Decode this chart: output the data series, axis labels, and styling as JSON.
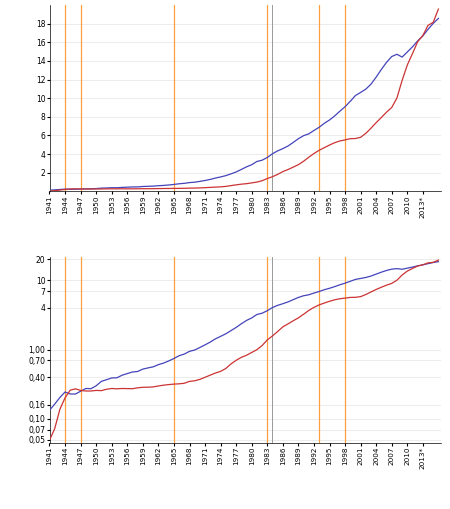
{
  "years": [
    1941,
    1942,
    1943,
    1944,
    1945,
    1946,
    1947,
    1948,
    1949,
    1950,
    1951,
    1952,
    1953,
    1954,
    1955,
    1956,
    1957,
    1958,
    1959,
    1960,
    1961,
    1962,
    1963,
    1964,
    1965,
    1966,
    1967,
    1968,
    1969,
    1970,
    1971,
    1972,
    1973,
    1974,
    1975,
    1976,
    1977,
    1978,
    1979,
    1980,
    1981,
    1982,
    1983,
    1984,
    1985,
    1986,
    1987,
    1988,
    1989,
    1990,
    1991,
    1992,
    1993,
    1994,
    1995,
    1996,
    1997,
    1998,
    1999,
    2000,
    2001,
    2002,
    2003,
    2004,
    2005,
    2006,
    2007,
    2008,
    2009,
    2010,
    2011,
    2012,
    2013,
    2014,
    2015,
    2016
  ],
  "gdp": [
    0.133,
    0.163,
    0.203,
    0.244,
    0.228,
    0.228,
    0.25,
    0.274,
    0.272,
    0.3,
    0.347,
    0.367,
    0.389,
    0.391,
    0.426,
    0.45,
    0.474,
    0.482,
    0.522,
    0.543,
    0.563,
    0.605,
    0.638,
    0.685,
    0.743,
    0.815,
    0.861,
    0.942,
    0.984,
    1.071,
    1.168,
    1.282,
    1.428,
    1.549,
    1.688,
    1.877,
    2.086,
    2.356,
    2.632,
    2.862,
    3.211,
    3.345,
    3.638,
    4.04,
    4.347,
    4.59,
    4.87,
    5.252,
    5.657,
    5.979,
    6.174,
    6.539,
    6.879,
    7.309,
    7.664,
    8.1,
    8.609,
    9.089,
    9.665,
    10.29,
    10.622,
    10.977,
    11.511,
    12.275,
    13.094,
    13.856,
    14.478,
    14.719,
    14.419,
    14.964,
    15.518,
    16.155,
    16.692,
    17.393,
    18.037,
    18.569
  ],
  "debt": [
    0.049,
    0.072,
    0.137,
    0.201,
    0.259,
    0.271,
    0.257,
    0.252,
    0.252,
    0.257,
    0.255,
    0.267,
    0.274,
    0.271,
    0.274,
    0.273,
    0.272,
    0.28,
    0.285,
    0.286,
    0.289,
    0.298,
    0.306,
    0.312,
    0.317,
    0.32,
    0.326,
    0.347,
    0.354,
    0.371,
    0.398,
    0.427,
    0.458,
    0.484,
    0.533,
    0.62,
    0.699,
    0.772,
    0.827,
    0.908,
    0.995,
    1.142,
    1.377,
    1.573,
    1.823,
    2.125,
    2.346,
    2.601,
    2.868,
    3.233,
    3.665,
    4.065,
    4.411,
    4.693,
    4.974,
    5.225,
    5.413,
    5.526,
    5.657,
    5.674,
    5.807,
    6.228,
    6.783,
    7.379,
    7.933,
    8.507,
    9.008,
    10.025,
    11.91,
    13.562,
    14.79,
    16.066,
    16.738,
    17.824,
    18.151,
    19.573
  ],
  "gdp_color": "#4444bb",
  "debt_color": "#cc3333",
  "orange_color": "#FFA040",
  "gray_vline_color": "#999999",
  "yticks_linear": [
    2,
    4,
    6,
    8,
    10,
    12,
    14,
    16,
    18
  ],
  "yticks_log_vals": [
    0.05,
    0.07,
    0.1,
    0.16,
    0.4,
    0.7,
    1.0,
    4.0,
    7.0,
    10.0,
    20.0
  ],
  "ytick_labels_log": [
    "0,05",
    "0,07",
    "0,10",
    "0,16",
    "0,40",
    "0,70",
    "1,00",
    "4",
    "7",
    "10",
    "20"
  ],
  "xtick_values": [
    1941,
    1944,
    1947,
    1950,
    1953,
    1956,
    1959,
    1962,
    1965,
    1968,
    1971,
    1974,
    1977,
    1980,
    1983,
    1986,
    1989,
    1992,
    1995,
    1998,
    2001,
    2004,
    2007,
    2010,
    2013
  ],
  "orange_vline_years": [
    1944,
    1947,
    1965,
    1983,
    1993,
    1998
  ],
  "gray_vline_year": 1984
}
